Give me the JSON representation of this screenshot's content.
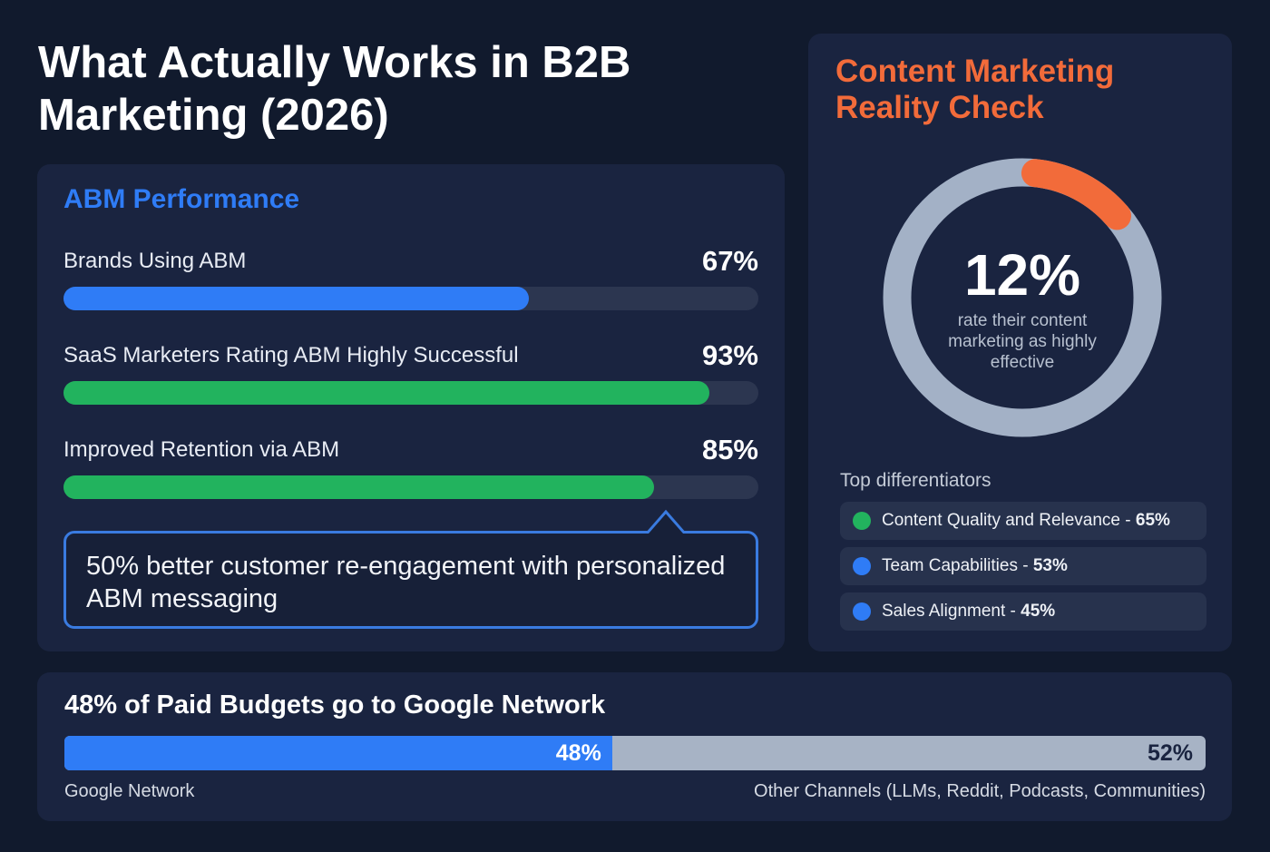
{
  "title": "What Actually Works in B2B Marketing (2026)",
  "colors": {
    "blue": "#2f7cf6",
    "green": "#22b35e",
    "orange": "#f26b3a",
    "track": "#2c3650",
    "grey": "#a7b3c5"
  },
  "abm": {
    "heading": "ABM Performance",
    "rows": [
      {
        "label": "Brands Using ABM",
        "value": "67%",
        "pct": 67,
        "color": "#2f7cf6"
      },
      {
        "label": "SaaS Marketers Rating ABM Highly Successful",
        "value": "93%",
        "pct": 93,
        "color": "#22b35e"
      },
      {
        "label": "Improved Retention via ABM",
        "value": "85%",
        "pct": 85,
        "color": "#22b35e"
      }
    ],
    "callout": "50% better customer re-engagement with personalized ABM messaging"
  },
  "content": {
    "heading": "Content Marketing Reality Check",
    "big": "12%",
    "pct": 12,
    "sub": "rate their content marketing as highly effective",
    "diff_heading": "Top differentiators",
    "items": [
      {
        "label": "Content Quality and Relevance - ",
        "value": "65%",
        "color": "#22b35e"
      },
      {
        "label": "Team Capabilities - ",
        "value": "53%",
        "color": "#2f7cf6"
      },
      {
        "label": "Sales Alignment - ",
        "value": "45%",
        "color": "#2f7cf6"
      }
    ]
  },
  "budget": {
    "heading": "48% of Paid Budgets go to Google Network",
    "left_value": "48%",
    "left_pct": 48,
    "left_label": "Google Network",
    "right_value": "52%",
    "right_label": "Other Channels (LLMs, Reddit, Podcasts, Communities)"
  },
  "chart_data": [
    {
      "type": "bar",
      "title": "ABM Performance",
      "categories": [
        "Brands Using ABM",
        "SaaS Marketers Rating ABM Highly Successful",
        "Improved Retention via ABM"
      ],
      "values": [
        67,
        93,
        85
      ],
      "ylim": [
        0,
        100
      ]
    },
    {
      "type": "pie",
      "title": "Content Marketing Reality Check",
      "categories": [
        "rate content marketing as highly effective",
        "other"
      ],
      "values": [
        12,
        88
      ]
    },
    {
      "type": "bar",
      "title": "Top differentiators",
      "categories": [
        "Content Quality and Relevance",
        "Team Capabilities",
        "Sales Alignment"
      ],
      "values": [
        65,
        53,
        45
      ]
    },
    {
      "type": "bar",
      "title": "48% of Paid Budgets go to Google Network",
      "categories": [
        "Google Network",
        "Other Channels (LLMs, Reddit, Podcasts, Communities)"
      ],
      "values": [
        48,
        52
      ],
      "stacked": true
    }
  ]
}
